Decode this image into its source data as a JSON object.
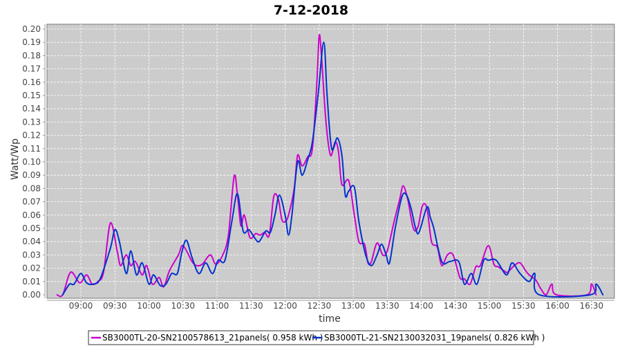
{
  "chart_data": {
    "type": "line",
    "title": "7-12-2018",
    "xlabel": "time",
    "ylabel": "Watt/Wp",
    "ylim": [
      0,
      0.2
    ],
    "yticks": [
      "0.00",
      "0.01",
      "0.02",
      "0.03",
      "0.04",
      "0.05",
      "0.06",
      "0.07",
      "0.08",
      "0.09",
      "0.10",
      "0.11",
      "0.12",
      "0.13",
      "0.14",
      "0.15",
      "0.16",
      "0.17",
      "0.18",
      "0.19",
      "0.20"
    ],
    "xticks": [
      "09:00",
      "09:30",
      "10:00",
      "10:30",
      "11:00",
      "11:30",
      "12:00",
      "12:30",
      "13:00",
      "13:30",
      "14:00",
      "14:30",
      "15:00",
      "15:30",
      "16:00",
      "16:30"
    ],
    "xlim": [
      "08:30",
      "16:51"
    ],
    "grid": true,
    "legend_position": "bottom",
    "series": [
      {
        "name": "SB3000TL-20-SN2100578613_21panels( 0.958 kWh )",
        "color": "#cc00cc",
        "points": [
          [
            "08:39",
            0
          ],
          [
            "08:44",
            0
          ],
          [
            "08:51",
            0.017
          ],
          [
            "08:59",
            0.009
          ],
          [
            "09:05",
            0.015
          ],
          [
            "09:10",
            0.008
          ],
          [
            "09:15",
            0.01
          ],
          [
            "09:20",
            0.017
          ],
          [
            "09:26",
            0.054
          ],
          [
            "09:32",
            0.033
          ],
          [
            "09:35",
            0.022
          ],
          [
            "09:40",
            0.03
          ],
          [
            "09:44",
            0.022
          ],
          [
            "09:48",
            0.025
          ],
          [
            "09:54",
            0.015
          ],
          [
            "09:58",
            0.022
          ],
          [
            "10:03",
            0.008
          ],
          [
            "10:09",
            0.013
          ],
          [
            "10:13",
            0.006
          ],
          [
            "10:18",
            0.018
          ],
          [
            "10:26",
            0.03
          ],
          [
            "10:30",
            0.037
          ],
          [
            "10:38",
            0.025
          ],
          [
            "10:42",
            0.022
          ],
          [
            "10:47",
            0.023
          ],
          [
            "10:54",
            0.03
          ],
          [
            "10:59",
            0.023
          ],
          [
            "11:05",
            0.03
          ],
          [
            "11:10",
            0.045
          ],
          [
            "11:15",
            0.089
          ],
          [
            "11:18",
            0.075
          ],
          [
            "11:21",
            0.052
          ],
          [
            "11:24",
            0.06
          ],
          [
            "11:29",
            0.043
          ],
          [
            "11:34",
            0.046
          ],
          [
            "11:38",
            0.045
          ],
          [
            "11:42",
            0.047
          ],
          [
            "11:46",
            0.045
          ],
          [
            "11:50",
            0.074
          ],
          [
            "11:54",
            0.072
          ],
          [
            "11:57",
            0.057
          ],
          [
            "12:00",
            0.055
          ],
          [
            "12:03",
            0.06
          ],
          [
            "12:08",
            0.08
          ],
          [
            "12:11",
            0.105
          ],
          [
            "12:15",
            0.097
          ],
          [
            "12:20",
            0.104
          ],
          [
            "12:24",
            0.11
          ],
          [
            "12:28",
            0.16
          ],
          [
            "12:30",
            0.195
          ],
          [
            "12:32",
            0.18
          ],
          [
            "12:36",
            0.13
          ],
          [
            "12:40",
            0.105
          ],
          [
            "12:44",
            0.115
          ],
          [
            "12:47",
            0.108
          ],
          [
            "12:50",
            0.083
          ],
          [
            "12:56",
            0.086
          ],
          [
            "13:01",
            0.06
          ],
          [
            "13:05",
            0.04
          ],
          [
            "13:10",
            0.038
          ],
          [
            "13:13",
            0.024
          ],
          [
            "13:16",
            0.025
          ],
          [
            "13:21",
            0.039
          ],
          [
            "13:26",
            0.03
          ],
          [
            "13:30",
            0.033
          ],
          [
            "13:36",
            0.055
          ],
          [
            "13:41",
            0.072
          ],
          [
            "13:44",
            0.082
          ],
          [
            "13:48",
            0.072
          ],
          [
            "13:53",
            0.05
          ],
          [
            "13:57",
            0.051
          ],
          [
            "14:01",
            0.067
          ],
          [
            "14:05",
            0.065
          ],
          [
            "14:09",
            0.04
          ],
          [
            "14:14",
            0.036
          ],
          [
            "14:18",
            0.022
          ],
          [
            "14:23",
            0.03
          ],
          [
            "14:28",
            0.03
          ],
          [
            "14:34",
            0.013
          ],
          [
            "14:38",
            0.012
          ],
          [
            "14:43",
            0.008
          ],
          [
            "14:48",
            0.021
          ],
          [
            "14:52",
            0.022
          ],
          [
            "14:59",
            0.037
          ],
          [
            "15:04",
            0.023
          ],
          [
            "15:08",
            0.021
          ],
          [
            "15:13",
            0.018
          ],
          [
            "15:16",
            0.017
          ],
          [
            "15:22",
            0.022
          ],
          [
            "15:27",
            0.024
          ],
          [
            "15:32",
            0.018
          ],
          [
            "15:35",
            0.015
          ],
          [
            "15:41",
            0.011
          ],
          [
            "15:45",
            0.005
          ],
          [
            "15:50",
            0
          ],
          [
            "15:55",
            0.008
          ],
          [
            "15:59",
            0
          ],
          [
            "16:26",
            0
          ],
          [
            "16:30",
            0.008
          ],
          [
            "16:34",
            0
          ]
        ]
      },
      {
        "name": "SB3000TL-21-SN2130032031_19panels( 0.826 kWh )",
        "color": "#0033cc",
        "points": [
          [
            "08:44",
            0
          ],
          [
            "08:50",
            0.008
          ],
          [
            "08:54",
            0.008
          ],
          [
            "09:00",
            0.016
          ],
          [
            "09:05",
            0.009
          ],
          [
            "09:11",
            0.008
          ],
          [
            "09:17",
            0.012
          ],
          [
            "09:26",
            0.035
          ],
          [
            "09:30",
            0.049
          ],
          [
            "09:34",
            0.04
          ],
          [
            "09:40",
            0.016
          ],
          [
            "09:44",
            0.033
          ],
          [
            "09:49",
            0.015
          ],
          [
            "09:54",
            0.024
          ],
          [
            "10:00",
            0.008
          ],
          [
            "10:04",
            0.015
          ],
          [
            "10:10",
            0.007
          ],
          [
            "10:15",
            0.008
          ],
          [
            "10:20",
            0.016
          ],
          [
            "10:25",
            0.016
          ],
          [
            "10:29",
            0.032
          ],
          [
            "10:33",
            0.041
          ],
          [
            "10:38",
            0.028
          ],
          [
            "10:44",
            0.016
          ],
          [
            "10:50",
            0.024
          ],
          [
            "10:56",
            0.016
          ],
          [
            "11:01",
            0.026
          ],
          [
            "11:07",
            0.026
          ],
          [
            "11:13",
            0.055
          ],
          [
            "11:18",
            0.076
          ],
          [
            "11:23",
            0.048
          ],
          [
            "11:28",
            0.049
          ],
          [
            "11:33",
            0.043
          ],
          [
            "11:37",
            0.04
          ],
          [
            "11:43",
            0.048
          ],
          [
            "11:47",
            0.047
          ],
          [
            "11:51",
            0.06
          ],
          [
            "11:55",
            0.075
          ],
          [
            "12:00",
            0.06
          ],
          [
            "12:03",
            0.045
          ],
          [
            "12:06",
            0.06
          ],
          [
            "12:11",
            0.1
          ],
          [
            "12:15",
            0.09
          ],
          [
            "12:20",
            0.102
          ],
          [
            "12:24",
            0.115
          ],
          [
            "12:29",
            0.15
          ],
          [
            "12:34",
            0.19
          ],
          [
            "12:37",
            0.15
          ],
          [
            "12:41",
            0.11
          ],
          [
            "12:46",
            0.118
          ],
          [
            "12:50",
            0.105
          ],
          [
            "12:53",
            0.075
          ],
          [
            "12:56",
            0.078
          ],
          [
            "13:01",
            0.081
          ],
          [
            "13:05",
            0.055
          ],
          [
            "13:11",
            0.03
          ],
          [
            "13:16",
            0.022
          ],
          [
            "13:21",
            0.03
          ],
          [
            "13:25",
            0.038
          ],
          [
            "13:29",
            0.03
          ],
          [
            "13:32",
            0.024
          ],
          [
            "13:37",
            0.05
          ],
          [
            "13:43",
            0.074
          ],
          [
            "13:47",
            0.075
          ],
          [
            "13:51",
            0.065
          ],
          [
            "13:55",
            0.05
          ],
          [
            "13:58",
            0.047
          ],
          [
            "14:05",
            0.066
          ],
          [
            "14:08",
            0.058
          ],
          [
            "14:11",
            0.05
          ],
          [
            "14:18",
            0.025
          ],
          [
            "14:25",
            0.025
          ],
          [
            "14:33",
            0.025
          ],
          [
            "14:38",
            0.008
          ],
          [
            "14:44",
            0.016
          ],
          [
            "14:49",
            0.008
          ],
          [
            "14:55",
            0.026
          ],
          [
            "14:59",
            0.026
          ],
          [
            "15:06",
            0.026
          ],
          [
            "15:15",
            0.015
          ],
          [
            "15:20",
            0.024
          ],
          [
            "15:27",
            0.016
          ],
          [
            "15:35",
            0.01
          ],
          [
            "15:40",
            0.016
          ],
          [
            "15:44",
            0
          ],
          [
            "16:29",
            0
          ],
          [
            "16:34",
            0.008
          ],
          [
            "16:40",
            0
          ]
        ]
      }
    ]
  }
}
